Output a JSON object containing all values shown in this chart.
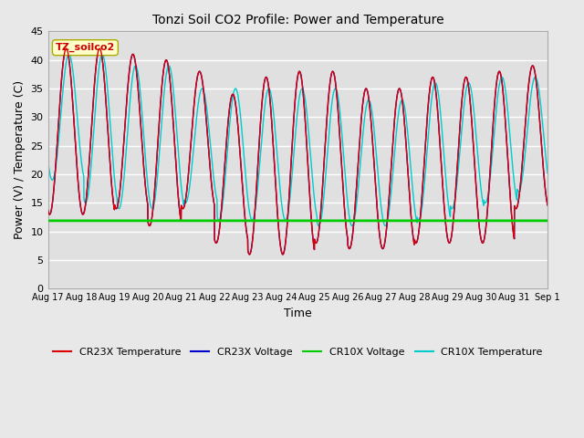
{
  "title": "Tonzi Soil CO2 Profile: Power and Temperature",
  "xlabel": "Time",
  "ylabel": "Power (V) / Temperature (C)",
  "ylim": [
    0,
    45
  ],
  "yticks": [
    0,
    5,
    10,
    15,
    20,
    25,
    30,
    35,
    40,
    45
  ],
  "annotation_text": "TZ_soilco2",
  "legend_entries": [
    "CR23X Temperature",
    "CR23X Voltage",
    "CR10X Voltage",
    "CR10X Temperature"
  ],
  "legend_colors": [
    "#dd0000",
    "#0000cc",
    "#00cc00",
    "#00cccc"
  ],
  "cr10x_voltage_value": 11.9,
  "fig_bg_color": "#e8e8e8",
  "plot_bg_color": "#e0e0e0",
  "grid_color": "#ffffff",
  "num_days": 15,
  "x_labels": [
    "Aug 17",
    "Aug 18",
    "Aug 19",
    "Aug 20",
    "Aug 21",
    "Aug 22",
    "Aug 23",
    "Aug 24",
    "Aug 25",
    "Aug 26",
    "Aug 27",
    "Aug 28",
    "Aug 29",
    "Aug 30",
    "Aug 31",
    "Sep 1"
  ],
  "cr23x_maxes": [
    42,
    42,
    41,
    40,
    38,
    34,
    37,
    38,
    38,
    35,
    35,
    37,
    37,
    38,
    39
  ],
  "cr23x_mins": [
    13,
    13,
    14,
    11,
    14,
    8,
    6,
    6,
    8,
    7,
    7,
    8,
    8,
    8,
    14
  ],
  "cr10x_maxes": [
    41,
    41,
    39,
    39,
    35,
    35,
    35,
    35,
    35,
    33,
    33,
    36,
    36,
    37,
    37
  ],
  "cr10x_mins": [
    19,
    15,
    14,
    14,
    15,
    12,
    12,
    12,
    11,
    11,
    11,
    12,
    14,
    15,
    17
  ]
}
